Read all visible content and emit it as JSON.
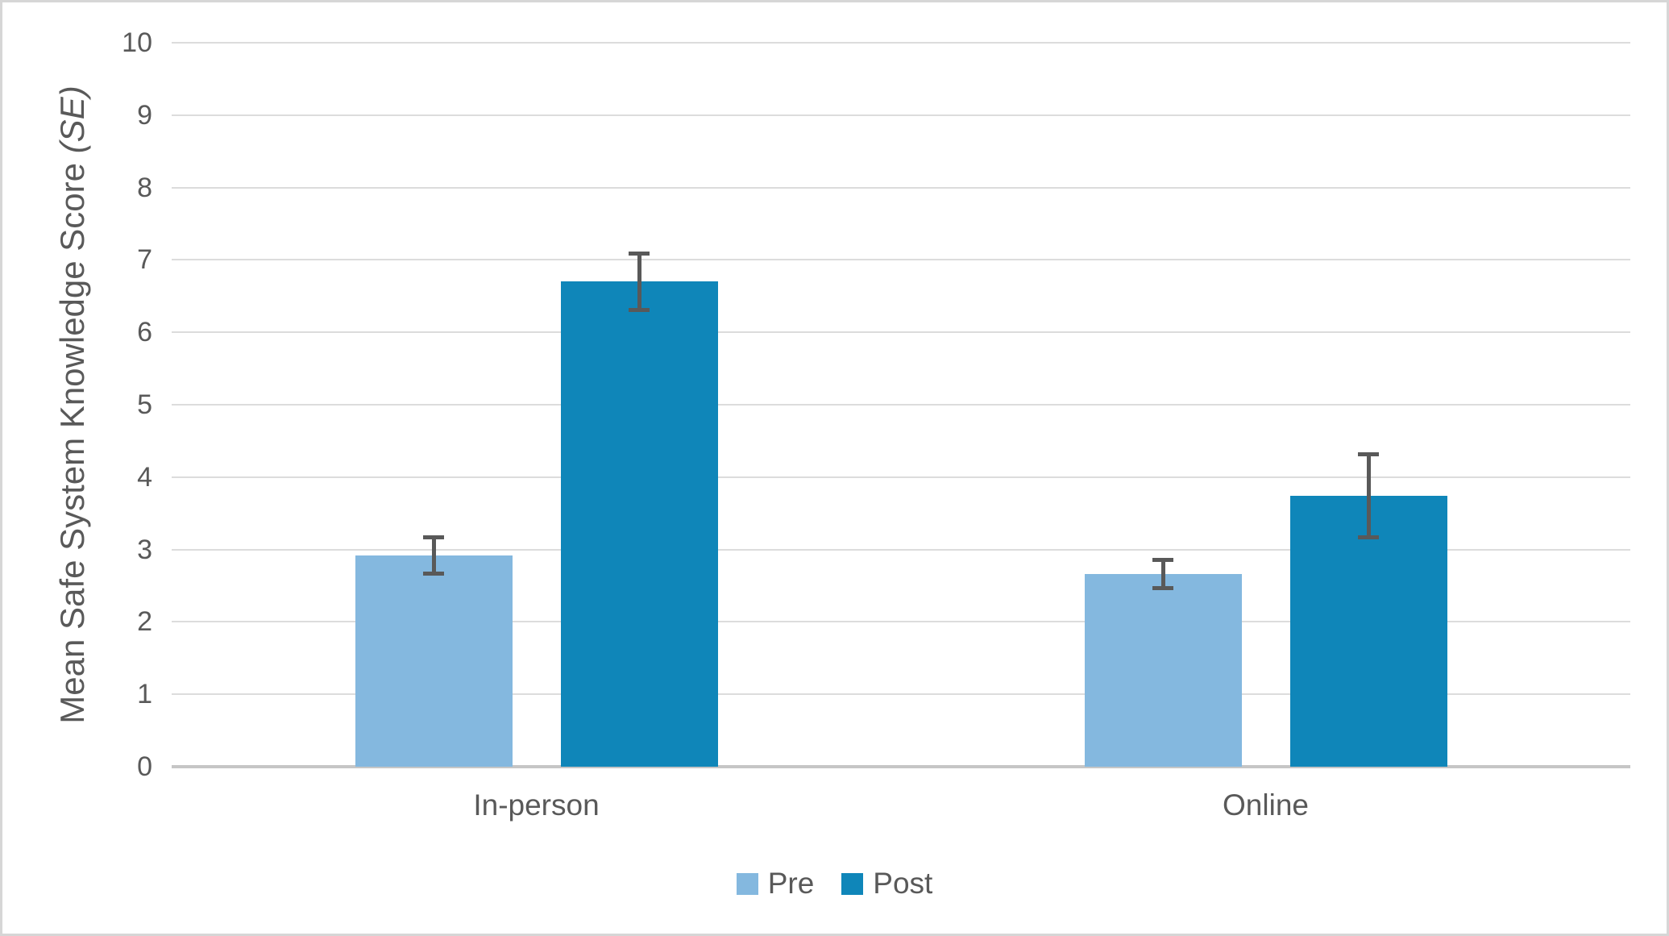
{
  "chart_data": {
    "type": "bar",
    "title": "",
    "categories": [
      "In-person",
      "Online"
    ],
    "series": [
      {
        "name": "Pre",
        "color": "#84B8DF",
        "values": [
          2.92,
          2.66
        ],
        "errors": [
          0.28,
          0.22
        ]
      },
      {
        "name": "Post",
        "color": "#0F86B9",
        "values": [
          6.7,
          3.74
        ],
        "errors": [
          0.42,
          0.6
        ]
      }
    ],
    "ylabel": "Mean Safe System Knowledge Score (SE)",
    "ylabel_main": "Mean Safe System Knowledge Score ",
    "ylabel_stat": "(SE)",
    "xlabel": "",
    "ylim": [
      0,
      10
    ],
    "yticks": [
      0,
      1,
      2,
      3,
      4,
      5,
      6,
      7,
      8,
      9,
      10
    ],
    "grid": "horizontal gridlines on",
    "legend_position": "bottom center",
    "error_bar_style": "plus-minus with caps"
  },
  "legend": {
    "items": [
      {
        "label": "Pre",
        "color": "#84B8DF"
      },
      {
        "label": "Post",
        "color": "#0F86B9"
      }
    ]
  },
  "colors": {
    "pre_bar": "#84B8DF",
    "post_bar": "#0F86B9",
    "text": "#595959",
    "gridline": "#DCDCDC",
    "axis_baseline": "#C6C6C6",
    "error_bar": "#595959",
    "figure_border": "#D6D6D6",
    "background": "#FFFFFF"
  }
}
